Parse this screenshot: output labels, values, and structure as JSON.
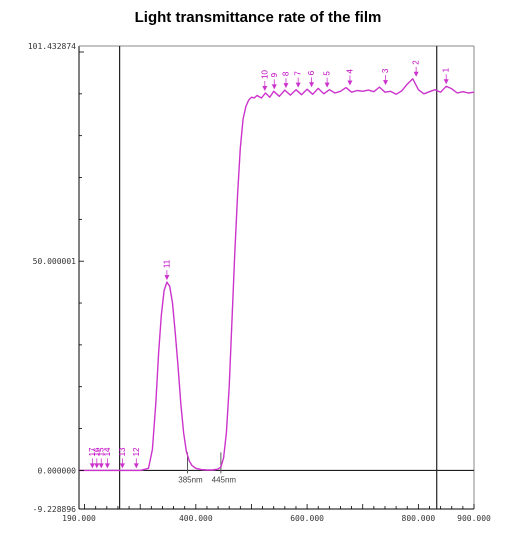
{
  "chart_data": {
    "type": "line",
    "title": "Light transmittance rate of the film",
    "xlabel": "",
    "ylabel": "",
    "xlim": [
      190.0,
      900.0
    ],
    "ylim": [
      -9.228896,
      101.432874
    ],
    "x_ticks": [
      {
        "value": 190.0,
        "label": "190.000"
      },
      {
        "value": 400.0,
        "label": "400.000"
      },
      {
        "value": 600.0,
        "label": "600.000"
      },
      {
        "value": 800.0,
        "label": "800.000"
      },
      {
        "value": 900.0,
        "label": "900.000"
      }
    ],
    "y_ticks": [
      {
        "value": -9.228896,
        "label": "-9.228896"
      },
      {
        "value": 0.0,
        "label": "0.000000"
      },
      {
        "value": 50.000001,
        "label": "50.000001"
      },
      {
        "value": 101.432874,
        "label": "101.432874"
      }
    ],
    "grid": false,
    "legend": "none",
    "line_color": "#cc33cc",
    "series": [
      {
        "x": [
          190,
          250,
          300,
          315,
          322,
          328,
          333,
          338,
          343,
          348,
          353,
          358,
          363,
          368,
          373,
          378,
          383,
          388,
          393,
          400,
          410,
          420,
          430,
          440,
          445,
          450,
          455,
          460,
          465,
          470,
          475,
          480,
          485,
          490,
          495,
          500,
          505,
          510,
          518,
          525,
          533,
          540,
          550,
          560,
          570,
          580,
          590,
          600,
          610,
          620,
          630,
          640,
          650,
          660,
          670,
          680,
          690,
          700,
          710,
          720,
          730,
          740,
          750,
          760,
          770,
          780,
          790,
          800,
          810,
          820,
          830,
          840,
          850,
          860,
          870,
          880,
          890,
          900
        ],
        "y": [
          0.0,
          0.0,
          0.0,
          0.5,
          5,
          16,
          28,
          37,
          43,
          45,
          44,
          40,
          33,
          25,
          16,
          9,
          4.5,
          2.3,
          1.2,
          0.5,
          0.2,
          0.1,
          0.1,
          0.3,
          0.8,
          3,
          9,
          20,
          36,
          52,
          66,
          77,
          84,
          87,
          88.5,
          89.2,
          89.0,
          89.6,
          89.0,
          90.2,
          89.2,
          90.6,
          89.4,
          90.9,
          89.7,
          91.0,
          89.8,
          91.1,
          89.9,
          91.3,
          90.0,
          91.0,
          90.2,
          90.6,
          91.5,
          90.4,
          90.8,
          90.6,
          90.9,
          90.5,
          91.6,
          90.4,
          90.6,
          89.9,
          90.7,
          92.3,
          93.6,
          91.0,
          90.0,
          90.5,
          91.0,
          90.4,
          91.8,
          91.2,
          90.2,
          90.5,
          90.2,
          90.4
        ]
      }
    ],
    "vertical_lines": [
      263,
      833
    ],
    "peaks": [
      {
        "label": "1",
        "x": 850,
        "y": 91.8
      },
      {
        "label": "2",
        "x": 796,
        "y": 93.6
      },
      {
        "label": "3",
        "x": 741,
        "y": 91.6
      },
      {
        "label": "4",
        "x": 677,
        "y": 91.5
      },
      {
        "label": "5",
        "x": 636,
        "y": 91.0
      },
      {
        "label": "6",
        "x": 608,
        "y": 91.1
      },
      {
        "label": "7",
        "x": 584,
        "y": 91.0
      },
      {
        "label": "8",
        "x": 562,
        "y": 90.9
      },
      {
        "label": "9",
        "x": 541,
        "y": 90.6
      },
      {
        "label": "10",
        "x": 524,
        "y": 90.2
      },
      {
        "label": "11",
        "x": 348,
        "y": 45.0
      },
      {
        "label": "12",
        "x": 293,
        "y": 0.0
      },
      {
        "label": "13",
        "x": 268,
        "y": 0.0
      },
      {
        "label": "14",
        "x": 241,
        "y": 0.0
      },
      {
        "label": "15",
        "x": 230,
        "y": 0.0
      },
      {
        "label": "16",
        "x": 222,
        "y": 0.0
      },
      {
        "label": "17",
        "x": 214,
        "y": 0.0
      }
    ],
    "annotations": [
      {
        "label": "385nm",
        "x": 385
      },
      {
        "label": "445nm",
        "x": 445
      }
    ]
  }
}
